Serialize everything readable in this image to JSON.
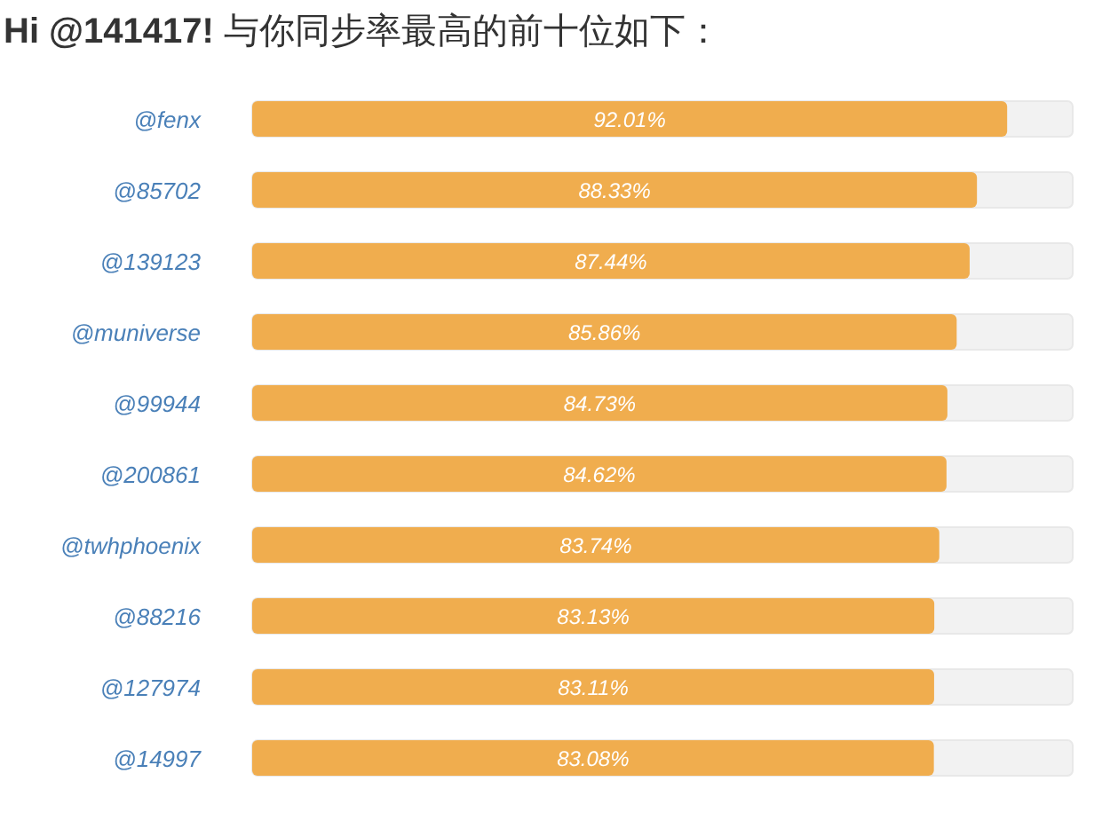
{
  "chart_data": {
    "type": "bar",
    "orientation": "horizontal",
    "title": "**Hi @141417!** 与你同步率最高的前十位如下：",
    "categories": [
      "@fenx",
      "@85702",
      "@139123",
      "@muniverse",
      "@99944",
      "@200861",
      "@twhphoenix",
      "@88216",
      "@127974",
      "@14997"
    ],
    "values": [
      92.01,
      88.33,
      87.44,
      85.86,
      84.73,
      84.62,
      83.74,
      83.13,
      83.11,
      83.08
    ],
    "value_labels": [
      "92.01%",
      "88.33%",
      "87.44%",
      "85.86%",
      "84.73%",
      "84.62%",
      "83.74%",
      "83.13%",
      "83.11%",
      "83.08%"
    ],
    "color": "#f0ad4e",
    "xlim": [
      0,
      100
    ],
    "tick_labels": "y"
  }
}
